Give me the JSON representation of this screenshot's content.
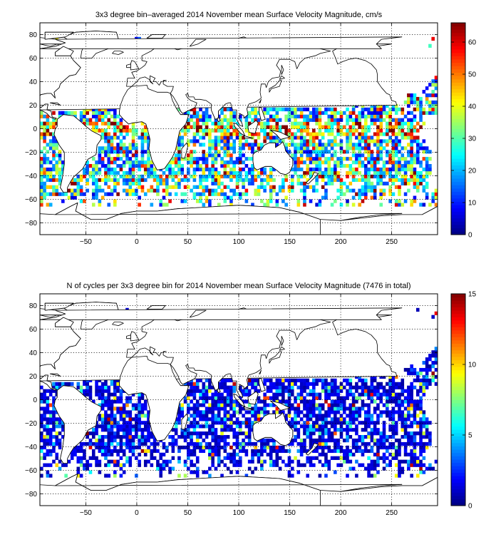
{
  "colors": {
    "background": "#ffffff",
    "land": "#ffffff",
    "coastline": "#000000",
    "colormap": "jet"
  },
  "chart_data": [
    {
      "type": "heatmap",
      "title": "3x3 degree bin–averaged 2014 November mean Surface Velocity Magnitude, cm/s",
      "xlabel": "",
      "ylabel": "",
      "xlim": [
        -95,
        295
      ],
      "ylim": [
        -90,
        90
      ],
      "xticks": [
        -50,
        0,
        50,
        100,
        150,
        200,
        250
      ],
      "xtick_labels": [
        "−50",
        "0",
        "50",
        "100",
        "150",
        "200",
        "250"
      ],
      "yticks": [
        80,
        60,
        40,
        20,
        0,
        -20,
        -40,
        -60,
        -80
      ],
      "ytick_labels": [
        "80",
        "60",
        "40",
        "20",
        "0",
        "−20",
        "−40",
        "−60",
        "−80"
      ],
      "grid": true,
      "bin_size_degrees": 3,
      "colorbar": {
        "range": [
          0,
          66
        ],
        "ticks": [
          0,
          10,
          20,
          30,
          40,
          50,
          60
        ],
        "tick_labels": [
          "0",
          "10",
          "20",
          "30",
          "40",
          "50",
          "60"
        ],
        "placement": "right"
      },
      "values_note": "",
      "seed": 7,
      "regime": "velocity"
    },
    {
      "type": "heatmap",
      "title": "N of cycles per 3x3 degree bin for 2014 November mean Surface Velocity Magnitude (7476 in total)",
      "xlabel": "",
      "ylabel": "",
      "xlim": [
        -95,
        295
      ],
      "ylim": [
        -90,
        90
      ],
      "xticks": [
        -50,
        0,
        50,
        100,
        150,
        200,
        250
      ],
      "xtick_labels": [
        "−50",
        "0",
        "50",
        "100",
        "150",
        "200",
        "250"
      ],
      "yticks": [
        80,
        60,
        40,
        20,
        0,
        -20,
        -40,
        -60,
        -80
      ],
      "ytick_labels": [
        "80",
        "60",
        "40",
        "20",
        "0",
        "−20",
        "−40",
        "−60",
        "−80"
      ],
      "grid": true,
      "bin_size_degrees": 3,
      "colorbar": {
        "range": [
          0,
          15
        ],
        "ticks": [
          0,
          5,
          10,
          15
        ],
        "tick_labels": [
          "0",
          "5",
          "10",
          "15"
        ],
        "placement": "right"
      },
      "values_note": "",
      "seed": 31,
      "regime": "count"
    }
  ]
}
